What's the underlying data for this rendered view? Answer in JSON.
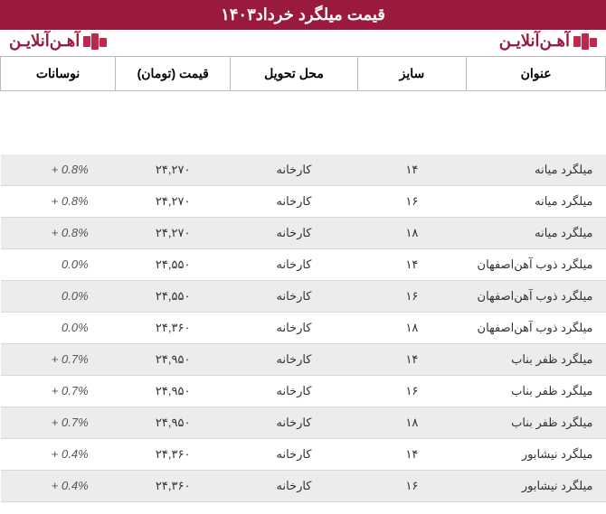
{
  "header": {
    "title": "قیمت میلگرد خرداد۱۴۰۳",
    "title_bg": "#9a1a3d",
    "title_color": "#ffffff",
    "brand_text": "آهـن‌آنلایـن",
    "brand_color": "#9a1a3d"
  },
  "table": {
    "columns": {
      "title": "عنوان",
      "size": "سایز",
      "delivery": "محل تحویل",
      "price": "قیمت (تومان)",
      "fluct": "نوسانات"
    },
    "rows": [
      {
        "title": "میلگرد میانه",
        "size": "۱۴",
        "delivery": "کارخانه",
        "price": "۲۴,۲۷۰",
        "fluct": "+ 0.8%",
        "shade": true
      },
      {
        "title": "میلگرد میانه",
        "size": "۱۶",
        "delivery": "کارخانه",
        "price": "۲۴,۲۷۰",
        "fluct": "+ 0.8%",
        "shade": false
      },
      {
        "title": "میلگرد میانه",
        "size": "۱۸",
        "delivery": "کارخانه",
        "price": "۲۴,۲۷۰",
        "fluct": "+ 0.8%",
        "shade": true
      },
      {
        "title": "میلگرد ذوب آهن‌اصفهان",
        "size": "۱۴",
        "delivery": "کارخانه",
        "price": "۲۴,۵۵۰",
        "fluct": "0.0%",
        "shade": false
      },
      {
        "title": "میلگرد ذوب آهن‌اصفهان",
        "size": "۱۶",
        "delivery": "کارخانه",
        "price": "۲۴,۵۵۰",
        "fluct": "0.0%",
        "shade": true
      },
      {
        "title": "میلگرد ذوب آهن‌اصفهان",
        "size": "۱۸",
        "delivery": "کارخانه",
        "price": "۲۴,۳۶۰",
        "fluct": "0.0%",
        "shade": false
      },
      {
        "title": "میلگرد ظفر بناب",
        "size": "۱۴",
        "delivery": "کارخانه",
        "price": "۲۴,۹۵۰",
        "fluct": "+ 0.7%",
        "shade": true
      },
      {
        "title": "میلگرد ظفر بناب",
        "size": "۱۶",
        "delivery": "کارخانه",
        "price": "۲۴,۹۵۰",
        "fluct": "+ 0.7%",
        "shade": false
      },
      {
        "title": "میلگرد ظفر بناب",
        "size": "۱۸",
        "delivery": "کارخانه",
        "price": "۲۴,۹۵۰",
        "fluct": "+ 0.7%",
        "shade": true
      },
      {
        "title": "میلگرد نیشابور",
        "size": "۱۴",
        "delivery": "کارخانه",
        "price": "۲۴,۳۶۰",
        "fluct": "+ 0.4%",
        "shade": false
      },
      {
        "title": "میلگرد نیشابور",
        "size": "۱۶",
        "delivery": "کارخانه",
        "price": "۲۴,۳۶۰",
        "fluct": "+ 0.4%",
        "shade": true
      }
    ],
    "header_border": "#bbbbbb",
    "row_border": "#d9d9d9",
    "shade_bg": "#ececec",
    "fontsize_header": 14,
    "fontsize_body": 13
  }
}
